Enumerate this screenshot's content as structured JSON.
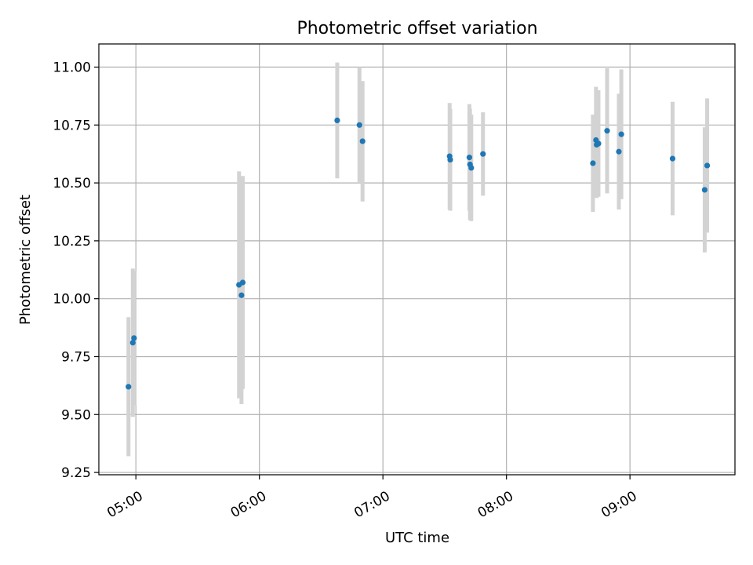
{
  "chart_data": {
    "type": "scatter",
    "title": "Photometric offset variation",
    "xlabel": "UTC time",
    "ylabel": "Photometric offset",
    "xlim_hours": [
      4.7,
      9.85
    ],
    "ylim": [
      9.24,
      11.1
    ],
    "grid": true,
    "x_ticks": [
      {
        "hours": 5,
        "label": "05:00"
      },
      {
        "hours": 6,
        "label": "06:00"
      },
      {
        "hours": 7,
        "label": "07:00"
      },
      {
        "hours": 8,
        "label": "08:00"
      },
      {
        "hours": 9,
        "label": "09:00"
      }
    ],
    "y_ticks": [
      {
        "value": 9.25,
        "label": "9.25"
      },
      {
        "value": 9.5,
        "label": "9.50"
      },
      {
        "value": 9.75,
        "label": "9.75"
      },
      {
        "value": 10.0,
        "label": "10.00"
      },
      {
        "value": 10.25,
        "label": "10.25"
      },
      {
        "value": 10.5,
        "label": "10.50"
      },
      {
        "value": 10.75,
        "label": "10.75"
      },
      {
        "value": 11.0,
        "label": "11.00"
      }
    ],
    "series": [
      {
        "name": "offset",
        "marker_color": "#1f77b4",
        "errorbar_color": "#d3d3d3",
        "points": [
          {
            "time_h": 4.94,
            "offset": 9.62,
            "err": 0.3
          },
          {
            "time_h": 4.975,
            "offset": 9.81,
            "err": 0.32
          },
          {
            "time_h": 4.985,
            "offset": 9.83,
            "err": 0.29
          },
          {
            "time_h": 5.835,
            "offset": 10.06,
            "err": 0.49
          },
          {
            "time_h": 5.855,
            "offset": 10.015,
            "err": 0.47
          },
          {
            "time_h": 5.865,
            "offset": 10.07,
            "err": 0.46
          },
          {
            "time_h": 6.63,
            "offset": 10.77,
            "err": 0.25
          },
          {
            "time_h": 6.81,
            "offset": 10.75,
            "err": 0.25
          },
          {
            "time_h": 6.835,
            "offset": 10.68,
            "err": 0.26
          },
          {
            "time_h": 7.54,
            "offset": 10.615,
            "err": 0.23
          },
          {
            "time_h": 7.545,
            "offset": 10.6,
            "err": 0.22
          },
          {
            "time_h": 7.7,
            "offset": 10.61,
            "err": 0.23
          },
          {
            "time_h": 7.705,
            "offset": 10.58,
            "err": 0.24
          },
          {
            "time_h": 7.715,
            "offset": 10.565,
            "err": 0.23
          },
          {
            "time_h": 7.81,
            "offset": 10.625,
            "err": 0.18
          },
          {
            "time_h": 8.7,
            "offset": 10.585,
            "err": 0.21
          },
          {
            "time_h": 8.725,
            "offset": 10.685,
            "err": 0.23
          },
          {
            "time_h": 8.73,
            "offset": 10.665,
            "err": 0.23
          },
          {
            "time_h": 8.745,
            "offset": 10.67,
            "err": 0.23
          },
          {
            "time_h": 8.815,
            "offset": 10.725,
            "err": 0.27
          },
          {
            "time_h": 8.91,
            "offset": 10.635,
            "err": 0.25
          },
          {
            "time_h": 8.93,
            "offset": 10.71,
            "err": 0.28
          },
          {
            "time_h": 9.345,
            "offset": 10.605,
            "err": 0.245
          },
          {
            "time_h": 9.605,
            "offset": 10.47,
            "err": 0.27
          },
          {
            "time_h": 9.625,
            "offset": 10.575,
            "err": 0.29
          }
        ]
      }
    ]
  }
}
